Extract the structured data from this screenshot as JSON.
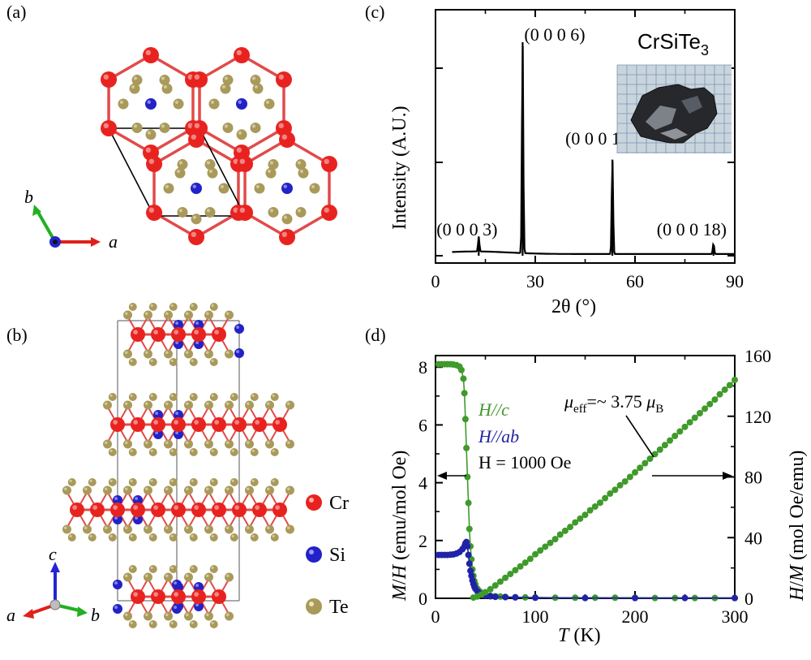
{
  "panels": {
    "a": "(a)",
    "b": "(b)",
    "c": "(c)",
    "d": "(d)"
  },
  "structure": {
    "axes_a": {
      "x": "a",
      "y": "b"
    },
    "axes_b": {
      "x": "a",
      "y": "b",
      "z": "c"
    },
    "legend": [
      {
        "name": "Cr",
        "color": "#e8231f"
      },
      {
        "name": "Si",
        "color": "#2222c8"
      },
      {
        "name": "Te",
        "color": "#a99a5a"
      }
    ],
    "colors": {
      "bond": "#e24a4a",
      "cell": "#000000",
      "x_arrow": "#e0201a",
      "y_arrow": "#22b022",
      "z_arrow": "#2424d0"
    }
  },
  "chart_data": [
    {
      "type": "line",
      "panel": "(c)",
      "xlabel": "2θ (°)",
      "ylabel": "Intensity (A.U.)",
      "xlim": [
        0,
        90
      ],
      "xticks": [
        "0",
        "30",
        "60",
        "90"
      ],
      "yticks_labeled": false,
      "sample_label": "CrSiTe3",
      "sample_label_main": "CrSiTe",
      "sample_label_sub": "3",
      "baseline": 0.0,
      "peaks": [
        {
          "label": "(0 0 0 3)",
          "x": 13.0,
          "height": 0.07
        },
        {
          "label": "(0 0 0 6)",
          "x": 26.2,
          "height": 1.0
        },
        {
          "label": "(0 0 0 12)",
          "x": 53.2,
          "height": 0.45
        },
        {
          "label": "(0 0 0 18)",
          "x": 83.6,
          "height": 0.05
        }
      ],
      "inset": "photo of crystal on graph paper",
      "color": "#000000"
    },
    {
      "type": "scatter",
      "panel": "(d)",
      "xlabel": "T (K)",
      "ylabel_left": "M/H (emu/mol Oe)",
      "ylabel_right": "H/M (mol Oe/emu)",
      "xlim": [
        0,
        300
      ],
      "ylim_left": [
        0,
        8.4
      ],
      "ylim_right": [
        0,
        160
      ],
      "xticks": [
        "0",
        "100",
        "200",
        "300"
      ],
      "yticks_left": [
        "0",
        "2",
        "4",
        "6",
        "8"
      ],
      "yticks_right": [
        "0",
        "40",
        "80",
        "120",
        "160"
      ],
      "annotations": {
        "hc": "H//c",
        "hab": "H//ab",
        "field": "H = 1000 Oe",
        "mu_symbol": "μ",
        "mu_sub_eff": "eff",
        "mu_value": "=~ 3.75 ",
        "mu_sub_b": "B"
      },
      "series": [
        {
          "name": "H//c",
          "color": "#3f9a2b",
          "axis": "left",
          "x": [
            3,
            6,
            9,
            12,
            15,
            18,
            21,
            24,
            26,
            28,
            29,
            30,
            31,
            32,
            33,
            34,
            35,
            36,
            37,
            38,
            39,
            40,
            42,
            44,
            46,
            48,
            50,
            55,
            60,
            65,
            70,
            80,
            90,
            100,
            120,
            140,
            160,
            180,
            200,
            220,
            240,
            260,
            280,
            300
          ],
          "y": [
            8.1,
            8.1,
            8.1,
            8.1,
            8.1,
            8.09,
            8.07,
            8.02,
            7.9,
            7.6,
            7.1,
            6.2,
            5.2,
            4.2,
            3.3,
            2.4,
            1.8,
            1.35,
            1.0,
            0.78,
            0.6,
            0.48,
            0.33,
            0.25,
            0.19,
            0.15,
            0.12,
            0.09,
            0.07,
            0.06,
            0.05,
            0.04,
            0.03,
            0.03,
            0.02,
            0.02,
            0.02,
            0.02,
            0.02,
            0.01,
            0.01,
            0.01,
            0.01,
            0.01
          ]
        },
        {
          "name": "H//ab",
          "color": "#2222a8",
          "axis": "left",
          "x": [
            3,
            6,
            9,
            12,
            15,
            18,
            21,
            24,
            27,
            29,
            30,
            31,
            32,
            33,
            34,
            35,
            36,
            37,
            38,
            39,
            40,
            42,
            44,
            46,
            48,
            50,
            55,
            60,
            70,
            80,
            100,
            150,
            200,
            250,
            300
          ],
          "y": [
            1.5,
            1.5,
            1.5,
            1.5,
            1.51,
            1.52,
            1.55,
            1.6,
            1.7,
            1.8,
            1.9,
            1.95,
            1.8,
            1.5,
            1.2,
            0.95,
            0.78,
            0.62,
            0.5,
            0.4,
            0.33,
            0.24,
            0.18,
            0.14,
            0.11,
            0.09,
            0.07,
            0.05,
            0.04,
            0.03,
            0.02,
            0.01,
            0.01,
            0.01,
            0.01
          ]
        },
        {
          "name": "H/M (H//c)",
          "color": "#3f9a2b",
          "axis": "right",
          "x": [
            38,
            42,
            46,
            50,
            55,
            60,
            65,
            70,
            75,
            80,
            85,
            90,
            95,
            100,
            105,
            110,
            115,
            120,
            125,
            130,
            135,
            140,
            145,
            150,
            155,
            160,
            165,
            170,
            175,
            180,
            185,
            190,
            195,
            200,
            205,
            210,
            215,
            220,
            225,
            230,
            235,
            240,
            245,
            250,
            255,
            260,
            265,
            270,
            275,
            280,
            285,
            290,
            295,
            300
          ],
          "y": [
            0.5,
            1.2,
            2.5,
            4,
            6,
            8.5,
            11,
            13.5,
            16,
            18.5,
            21,
            23.5,
            26,
            29,
            31.5,
            34,
            36.5,
            39,
            42,
            44.5,
            47,
            50,
            52.5,
            55,
            58,
            60.5,
            63,
            66,
            69,
            71.5,
            74.5,
            77,
            80,
            83,
            86,
            89,
            92,
            95,
            98,
            101,
            104,
            107,
            110,
            113,
            116,
            119,
            122,
            125,
            128,
            131,
            134.5,
            137.5,
            140.5,
            144
          ]
        }
      ]
    }
  ]
}
